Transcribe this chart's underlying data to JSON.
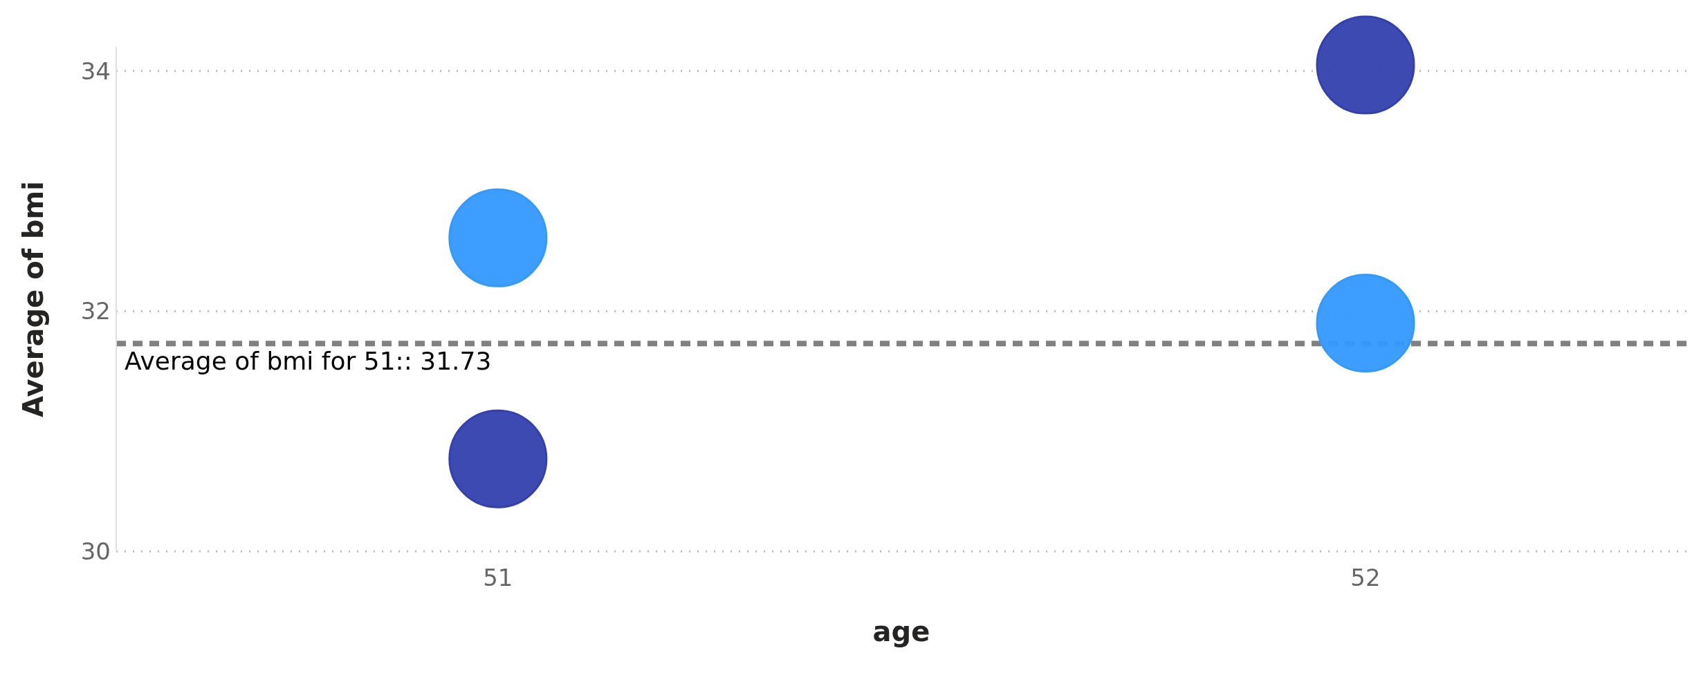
{
  "chart_data": {
    "type": "scatter",
    "xlabel": "age",
    "ylabel": "Average of bmi",
    "x": [
      51,
      52
    ],
    "series": [
      {
        "color": "#3399ff",
        "values": [
          32.61,
          31.9
        ]
      },
      {
        "color": "#3340ad",
        "values": [
          30.77,
          34.05
        ]
      }
    ],
    "xlim": [
      50.56,
      52.37
    ],
    "xticks": [
      51,
      52
    ],
    "ylim": [
      30,
      34.2
    ],
    "yticks": [
      30,
      32,
      34
    ],
    "grid": "y",
    "legend": false,
    "marker": "circle",
    "ref_lines": [
      {
        "axis": "y",
        "value": 31.73,
        "label": "Average of bmi for 51:: 31.73",
        "color": "#808080",
        "line_style": "dashed"
      }
    ]
  }
}
